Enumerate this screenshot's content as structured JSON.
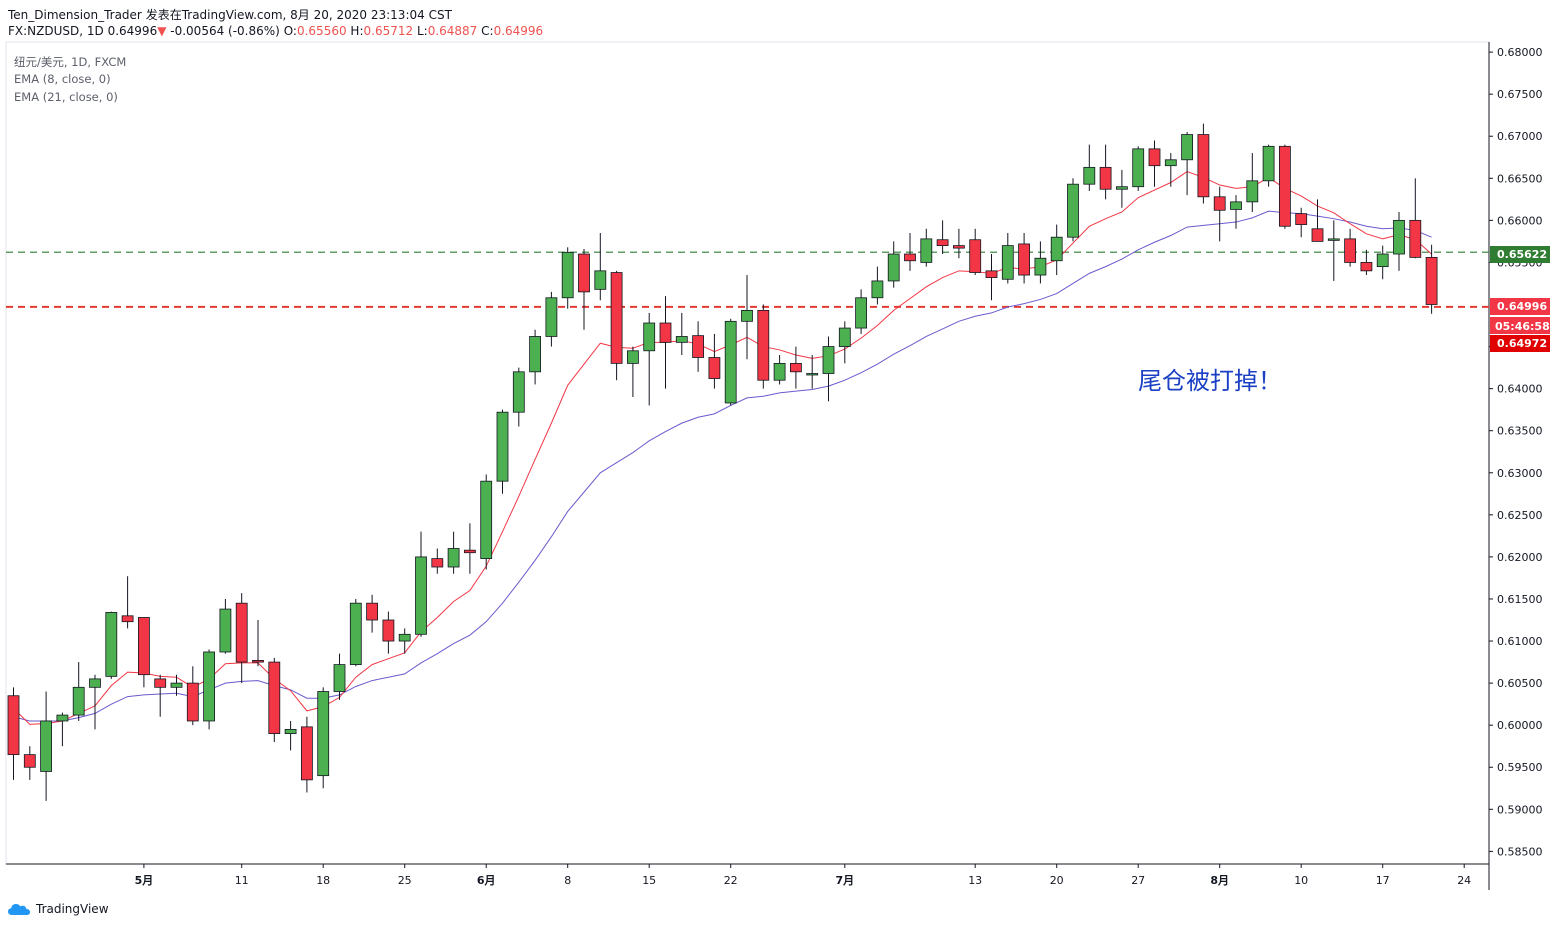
{
  "header": {
    "author": "Ten_Dimension_Trader",
    "published": "发表在TradingView.com, 8月 20, 2020 23:13:04 CST",
    "symbol": "FX:NZDUSD, 1D",
    "last": "0.64996",
    "change_arrow": "▼",
    "change": "-0.00564 (-0.86%)",
    "o_label": "O:",
    "o_value": "0.65560",
    "h_label": "H:",
    "h_value": "0.65712",
    "l_label": "L:",
    "l_value": "0.64887",
    "c_label": "C:",
    "c_value": "0.64996"
  },
  "legend": {
    "series": "纽元/美元, 1D, FXCM",
    "ema_fast": "EMA (8, close, 0)",
    "ema_slow": "EMA (21, close, 0)"
  },
  "price_tags": {
    "green_line": "0.65622",
    "last_price": "0.64996",
    "countdown": "05:46:58",
    "red_line": "0.64972"
  },
  "annotation": "尾仓被打掉！",
  "branding": "TradingView",
  "colors": {
    "up": "#4caf50",
    "down": "#f23645",
    "wick": "#131722",
    "ema_fast": "#f23645",
    "ema_slow": "#6a5acd",
    "hline_green": "#2e7d32",
    "hline_red": "#e53935",
    "annotation": "#1a3fc4"
  },
  "chart_data": {
    "type": "candlestick",
    "symbol": "NZDUSD",
    "interval": "1D",
    "y_ticks": [
      "0.68000",
      "0.67500",
      "0.67000",
      "0.66500",
      "0.66000",
      "0.65500",
      "0.64500",
      "0.64000",
      "0.63500",
      "0.63000",
      "0.62500",
      "0.62000",
      "0.61500",
      "0.61000",
      "0.60500",
      "0.60000",
      "0.59500",
      "0.59000",
      "0.58500"
    ],
    "ylim": [
      0.5835,
      0.6812
    ],
    "x_ticks": [
      {
        "label": "5月",
        "index": 8,
        "bold": true
      },
      {
        "label": "11",
        "index": 14
      },
      {
        "label": "18",
        "index": 19
      },
      {
        "label": "25",
        "index": 24
      },
      {
        "label": "6月",
        "index": 29,
        "bold": true
      },
      {
        "label": "8",
        "index": 34
      },
      {
        "label": "15",
        "index": 39
      },
      {
        "label": "22",
        "index": 44
      },
      {
        "label": "7月",
        "index": 51,
        "bold": true
      },
      {
        "label": "13",
        "index": 59
      },
      {
        "label": "20",
        "index": 64
      },
      {
        "label": "27",
        "index": 69
      },
      {
        "label": "8月",
        "index": 74,
        "bold": true
      },
      {
        "label": "10",
        "index": 79
      },
      {
        "label": "17",
        "index": 84
      },
      {
        "label": "24",
        "index": 89
      }
    ],
    "horizontal_lines": [
      {
        "value": 0.65622,
        "color": "green",
        "style": "dashed"
      },
      {
        "value": 0.64972,
        "color": "red",
        "style": "dashed"
      }
    ],
    "candles": [
      [
        0.6035,
        0.6045,
        0.5935,
        0.5965
      ],
      [
        0.5965,
        0.5975,
        0.5935,
        0.595
      ],
      [
        0.5945,
        0.604,
        0.591,
        0.6005
      ],
      [
        0.6005,
        0.6015,
        0.5975,
        0.6012
      ],
      [
        0.6012,
        0.6075,
        0.6005,
        0.6045
      ],
      [
        0.6045,
        0.606,
        0.5995,
        0.6055
      ],
      [
        0.6058,
        0.6135,
        0.6055,
        0.6134
      ],
      [
        0.613,
        0.6177,
        0.6115,
        0.6123
      ],
      [
        0.6128,
        0.6128,
        0.6045,
        0.606
      ],
      [
        0.6055,
        0.606,
        0.601,
        0.6045
      ],
      [
        0.6045,
        0.606,
        0.6035,
        0.605
      ],
      [
        0.605,
        0.607,
        0.6,
        0.6005
      ],
      [
        0.6005,
        0.609,
        0.5995,
        0.6087
      ],
      [
        0.6087,
        0.615,
        0.6085,
        0.6138
      ],
      [
        0.6145,
        0.6157,
        0.605,
        0.6075
      ],
      [
        0.6077,
        0.6125,
        0.607,
        0.6075
      ],
      [
        0.6075,
        0.608,
        0.598,
        0.599
      ],
      [
        0.599,
        0.6005,
        0.597,
        0.5995
      ],
      [
        0.5998,
        0.601,
        0.592,
        0.5935
      ],
      [
        0.594,
        0.6045,
        0.5925,
        0.604
      ],
      [
        0.604,
        0.6085,
        0.603,
        0.6072
      ],
      [
        0.6072,
        0.615,
        0.607,
        0.6145
      ],
      [
        0.6145,
        0.6155,
        0.611,
        0.6125
      ],
      [
        0.6125,
        0.6135,
        0.6085,
        0.61
      ],
      [
        0.61,
        0.6115,
        0.6085,
        0.6108
      ],
      [
        0.6108,
        0.623,
        0.6105,
        0.62
      ],
      [
        0.6198,
        0.621,
        0.618,
        0.6188
      ],
      [
        0.6188,
        0.623,
        0.618,
        0.621
      ],
      [
        0.6208,
        0.624,
        0.618,
        0.6205
      ],
      [
        0.6198,
        0.6298,
        0.6185,
        0.629
      ],
      [
        0.629,
        0.6375,
        0.6275,
        0.6372
      ],
      [
        0.6372,
        0.6425,
        0.6355,
        0.642
      ],
      [
        0.642,
        0.647,
        0.6405,
        0.6462
      ],
      [
        0.6462,
        0.6515,
        0.645,
        0.6508
      ],
      [
        0.6508,
        0.6568,
        0.6495,
        0.6562
      ],
      [
        0.656,
        0.6566,
        0.647,
        0.6515
      ],
      [
        0.6518,
        0.6585,
        0.6505,
        0.654
      ],
      [
        0.6538,
        0.654,
        0.641,
        0.643
      ],
      [
        0.643,
        0.645,
        0.639,
        0.6445
      ],
      [
        0.6445,
        0.649,
        0.638,
        0.6478
      ],
      [
        0.6478,
        0.651,
        0.64,
        0.6455
      ],
      [
        0.6455,
        0.649,
        0.644,
        0.6462
      ],
      [
        0.6463,
        0.648,
        0.642,
        0.6437
      ],
      [
        0.6437,
        0.6465,
        0.64,
        0.6412
      ],
      [
        0.6383,
        0.6483,
        0.638,
        0.648
      ],
      [
        0.648,
        0.6535,
        0.6435,
        0.6493
      ],
      [
        0.6493,
        0.65,
        0.64,
        0.641
      ],
      [
        0.641,
        0.644,
        0.6405,
        0.643
      ],
      [
        0.643,
        0.645,
        0.64,
        0.642
      ],
      [
        0.6418,
        0.644,
        0.64,
        0.6418
      ],
      [
        0.6418,
        0.6462,
        0.6385,
        0.645
      ],
      [
        0.645,
        0.648,
        0.643,
        0.6472
      ],
      [
        0.6472,
        0.6518,
        0.6465,
        0.6508
      ],
      [
        0.6508,
        0.6545,
        0.65,
        0.6528
      ],
      [
        0.6528,
        0.6575,
        0.652,
        0.656
      ],
      [
        0.656,
        0.6585,
        0.654,
        0.6552
      ],
      [
        0.655,
        0.659,
        0.6545,
        0.6578
      ],
      [
        0.6577,
        0.66,
        0.656,
        0.657
      ],
      [
        0.657,
        0.659,
        0.6555,
        0.6567
      ],
      [
        0.6577,
        0.659,
        0.6535,
        0.6538
      ],
      [
        0.654,
        0.656,
        0.6505,
        0.6532
      ],
      [
        0.653,
        0.6585,
        0.6525,
        0.657
      ],
      [
        0.6572,
        0.6585,
        0.6525,
        0.6535
      ],
      [
        0.6535,
        0.6575,
        0.6525,
        0.6555
      ],
      [
        0.6552,
        0.6595,
        0.6535,
        0.658
      ],
      [
        0.658,
        0.665,
        0.6575,
        0.6643
      ],
      [
        0.6643,
        0.669,
        0.6635,
        0.6663
      ],
      [
        0.6663,
        0.669,
        0.6625,
        0.6637
      ],
      [
        0.6637,
        0.666,
        0.6615,
        0.664
      ],
      [
        0.664,
        0.6688,
        0.6635,
        0.6685
      ],
      [
        0.6685,
        0.6695,
        0.664,
        0.6665
      ],
      [
        0.6665,
        0.668,
        0.664,
        0.6672
      ],
      [
        0.6672,
        0.6705,
        0.663,
        0.6702
      ],
      [
        0.6702,
        0.6715,
        0.662,
        0.6628
      ],
      [
        0.6628,
        0.664,
        0.6575,
        0.6612
      ],
      [
        0.6613,
        0.663,
        0.659,
        0.6622
      ],
      [
        0.6622,
        0.668,
        0.661,
        0.6647
      ],
      [
        0.6647,
        0.669,
        0.664,
        0.6688
      ],
      [
        0.6688,
        0.669,
        0.659,
        0.6593
      ],
      [
        0.6608,
        0.6615,
        0.658,
        0.6595
      ],
      [
        0.659,
        0.6625,
        0.6575,
        0.6575
      ],
      [
        0.6578,
        0.66,
        0.6528,
        0.6578
      ],
      [
        0.6578,
        0.659,
        0.6545,
        0.655
      ],
      [
        0.655,
        0.6565,
        0.6535,
        0.654
      ],
      [
        0.6545,
        0.657,
        0.653,
        0.656
      ],
      [
        0.656,
        0.661,
        0.654,
        0.66
      ],
      [
        0.66,
        0.665,
        0.6555,
        0.6556
      ],
      [
        0.6556,
        0.6571,
        0.6489,
        0.65
      ]
    ],
    "ema_fast": [
      0.602,
      0.6001,
      0.6002,
      0.6005,
      0.6014,
      0.6023,
      0.6047,
      0.6063,
      0.6062,
      0.6058,
      0.6057,
      0.6045,
      0.6055,
      0.6073,
      0.6074,
      0.6074,
      0.6055,
      0.6041,
      0.6017,
      0.6022,
      0.6033,
      0.6057,
      0.6072,
      0.6079,
      0.6086,
      0.6111,
      0.6128,
      0.6147,
      0.616,
      0.6189,
      0.623,
      0.6272,
      0.6316,
      0.6359,
      0.6404,
      0.6429,
      0.6454,
      0.6449,
      0.6448,
      0.6455,
      0.6455,
      0.6457,
      0.6453,
      0.6444,
      0.6452,
      0.6461,
      0.645,
      0.6446,
      0.644,
      0.6436,
      0.6439,
      0.6447,
      0.646,
      0.6475,
      0.6493,
      0.6507,
      0.6521,
      0.6532,
      0.654,
      0.6539,
      0.6537,
      0.6544,
      0.6542,
      0.6545,
      0.6553,
      0.6573,
      0.6593,
      0.6602,
      0.661,
      0.6627,
      0.6636,
      0.6645,
      0.6658,
      0.6651,
      0.6642,
      0.6638,
      0.664,
      0.6651,
      0.6638,
      0.6629,
      0.6617,
      0.6609,
      0.6596,
      0.6584,
      0.6578,
      0.6583,
      0.6577,
      0.656
    ],
    "ema_slow": [
      0.601,
      0.6005,
      0.6005,
      0.6005,
      0.6009,
      0.6014,
      0.6025,
      0.6034,
      0.6036,
      0.6037,
      0.6038,
      0.6034,
      0.6042,
      0.605,
      0.6052,
      0.6053,
      0.6047,
      0.6042,
      0.6032,
      0.6032,
      0.6036,
      0.6046,
      0.6053,
      0.6057,
      0.6061,
      0.6074,
      0.6085,
      0.6097,
      0.6107,
      0.6123,
      0.6145,
      0.617,
      0.6196,
      0.6224,
      0.6254,
      0.6277,
      0.63,
      0.6312,
      0.6324,
      0.6338,
      0.6349,
      0.6359,
      0.6366,
      0.637,
      0.638,
      0.6389,
      0.6391,
      0.6395,
      0.6397,
      0.6399,
      0.6403,
      0.641,
      0.6419,
      0.6429,
      0.6441,
      0.6451,
      0.6462,
      0.6471,
      0.648,
      0.6486,
      0.649,
      0.6497,
      0.6501,
      0.6506,
      0.6513,
      0.6525,
      0.6537,
      0.6545,
      0.6554,
      0.6565,
      0.6574,
      0.6582,
      0.6592,
      0.6594,
      0.6596,
      0.6598,
      0.6603,
      0.6611,
      0.6609,
      0.6608,
      0.6605,
      0.6602,
      0.6598,
      0.6593,
      0.659,
      0.6591,
      0.6588,
      0.658
    ]
  }
}
